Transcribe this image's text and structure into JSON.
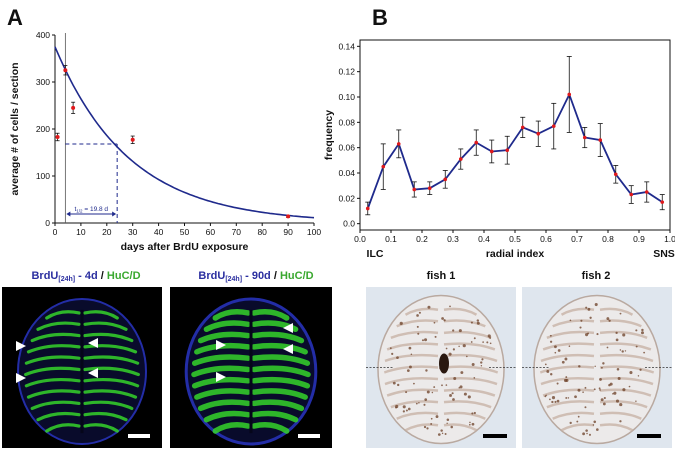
{
  "figure": {
    "panel_a_label": "A",
    "panel_b_label": "B"
  },
  "chart_data": [
    {
      "type": "scatter",
      "panel": "A",
      "xlabel": "days after BrdU exposure",
      "ylabel": "average # of cells / section",
      "xlim": [
        0,
        100
      ],
      "ylim": [
        0,
        400
      ],
      "xticks": [
        0,
        10,
        20,
        30,
        40,
        50,
        60,
        70,
        80,
        90,
        100
      ],
      "yticks": [
        0,
        100,
        200,
        300,
        400
      ],
      "points": [
        {
          "x": 1,
          "y": 183,
          "err": 8
        },
        {
          "x": 4,
          "y": 325,
          "err": 10
        },
        {
          "x": 7,
          "y": 245,
          "err": 12
        },
        {
          "x": 30,
          "y": 177,
          "err": 8
        },
        {
          "x": 90,
          "y": 14,
          "err": 2
        }
      ],
      "fit_curve": {
        "y0": 375,
        "half_life_days": 19.8
      },
      "annotation": {
        "text_main": "t",
        "text_sub": "1/2",
        "text_rest": " = 19.8 d",
        "x_start": 4,
        "x_end": 24,
        "y_level": 168
      },
      "grid": false
    },
    {
      "type": "line",
      "panel": "B",
      "xlabel": "radial index",
      "ylabel": "frequency",
      "xlim": [
        0,
        1
      ],
      "ylim": [
        -0.005,
        0.145
      ],
      "xticks": [
        0.0,
        0.1,
        0.2,
        0.3,
        0.4,
        0.5,
        0.6,
        0.7,
        0.8,
        0.9,
        1.0
      ],
      "xtick_labels": [
        "0.0",
        "0.1",
        "0.2",
        "0.3",
        "0.4",
        "0.5",
        "0.6",
        "0.7",
        "0.8",
        "0.9",
        "1.0"
      ],
      "yticks": [
        0.0,
        0.02,
        0.04,
        0.06,
        0.08,
        0.1,
        0.12,
        0.14
      ],
      "ytick_labels": [
        "0.0",
        "0.02",
        "0.04",
        "0.06",
        "0.08",
        "0.10",
        "0.12",
        "0.14"
      ],
      "left_end_label": "ILC",
      "right_end_label": "SNS",
      "x": [
        0.025,
        0.075,
        0.125,
        0.175,
        0.225,
        0.275,
        0.325,
        0.375,
        0.425,
        0.475,
        0.525,
        0.575,
        0.625,
        0.675,
        0.725,
        0.775,
        0.825,
        0.875,
        0.925,
        0.975
      ],
      "values": [
        0.012,
        0.045,
        0.063,
        0.027,
        0.028,
        0.035,
        0.051,
        0.064,
        0.057,
        0.058,
        0.076,
        0.071,
        0.077,
        0.102,
        0.068,
        0.066,
        0.039,
        0.023,
        0.025,
        0.017
      ],
      "errors": [
        0.005,
        0.018,
        0.011,
        0.006,
        0.005,
        0.007,
        0.008,
        0.01,
        0.009,
        0.011,
        0.008,
        0.01,
        0.018,
        0.03,
        0.008,
        0.013,
        0.007,
        0.007,
        0.008,
        0.006
      ],
      "grid": false
    }
  ],
  "micrographs": {
    "left_title": {
      "brdu": "BrdU",
      "sub": "[24h]",
      "time": " - 4d ",
      "sep": "/ ",
      "huc": "HuC/D"
    },
    "right_title": {
      "brdu": "BrdU",
      "sub": "[24h]",
      "time": " - 90d ",
      "sep": "/ ",
      "huc": "HuC/D"
    },
    "fish1_label": "fish 1",
    "fish2_label": "fish 2"
  },
  "colors": {
    "curve": "#1f2a8c",
    "marker": "#e0191c",
    "brdu_text": "#2b2fa0",
    "huc_text": "#3aa82f",
    "fluor_green": "#35d42a",
    "dapi_blue": "#2530b0"
  }
}
